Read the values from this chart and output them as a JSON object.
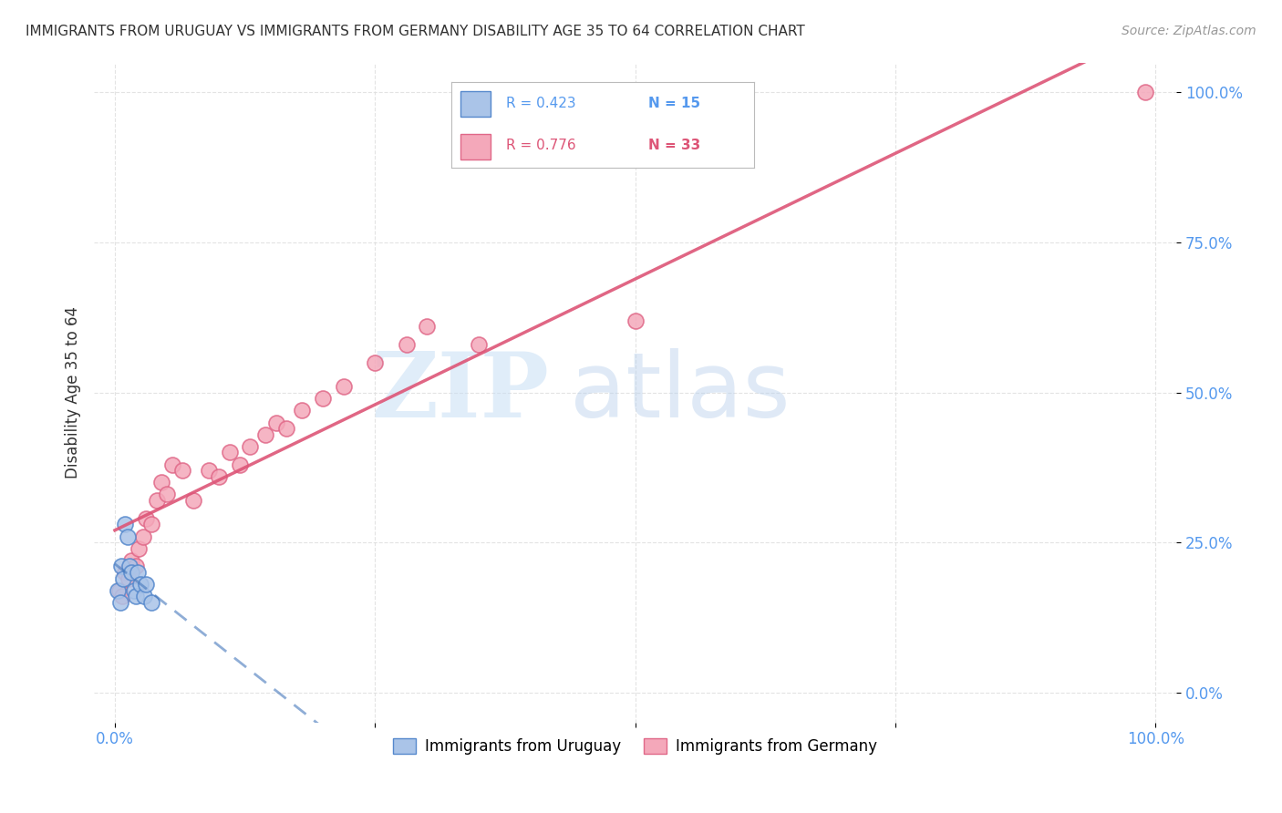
{
  "title": "IMMIGRANTS FROM URUGUAY VS IMMIGRANTS FROM GERMANY DISABILITY AGE 35 TO 64 CORRELATION CHART",
  "source": "Source: ZipAtlas.com",
  "ylabel": "Disability Age 35 to 64",
  "xlim": [
    -2,
    102
  ],
  "ylim": [
    -5,
    105
  ],
  "y_tick_labels": [
    "0.0%",
    "25.0%",
    "50.0%",
    "75.0%",
    "100.0%"
  ],
  "y_tick_positions": [
    0,
    25,
    50,
    75,
    100
  ],
  "legend_R_uru": "R = 0.423",
  "legend_N_uru": "N = 15",
  "legend_R_ger": "R = 0.776",
  "legend_N_ger": "N = 33",
  "watermark_zip": "ZIP",
  "watermark_atlas": "atlas",
  "uruguay_color": "#aac4e8",
  "germany_color": "#f4a8ba",
  "uruguay_edge_color": "#5588cc",
  "germany_edge_color": "#e06888",
  "uruguay_line_color": "#4477bb",
  "germany_line_color": "#dd5577",
  "scatter_size": 150,
  "uruguay_x": [
    0.3,
    0.5,
    0.6,
    0.8,
    1.0,
    1.2,
    1.4,
    1.6,
    1.8,
    2.0,
    2.2,
    2.5,
    2.8,
    3.0,
    3.5
  ],
  "uruguay_y": [
    17,
    15,
    21,
    19,
    28,
    26,
    21,
    20,
    17,
    16,
    20,
    18,
    16,
    18,
    15
  ],
  "germany_x": [
    0.4,
    0.7,
    1.0,
    1.3,
    1.6,
    2.0,
    2.3,
    2.7,
    3.0,
    3.5,
    4.0,
    4.5,
    5.0,
    5.5,
    6.5,
    7.5,
    9.0,
    10.0,
    11.0,
    12.0,
    13.0,
    14.5,
    15.5,
    16.5,
    18.0,
    20.0,
    22.0,
    25.0,
    28.0,
    30.0,
    35.0,
    50.0,
    99.0
  ],
  "germany_y": [
    17,
    16,
    20,
    19,
    22,
    21,
    24,
    26,
    29,
    28,
    32,
    35,
    33,
    38,
    37,
    32,
    37,
    36,
    40,
    38,
    41,
    43,
    45,
    44,
    47,
    49,
    51,
    55,
    58,
    61,
    58,
    62,
    100
  ],
  "background_color": "#ffffff",
  "grid_color": "#dddddd",
  "tick_color": "#5599ee",
  "title_color": "#333333",
  "source_color": "#999999"
}
